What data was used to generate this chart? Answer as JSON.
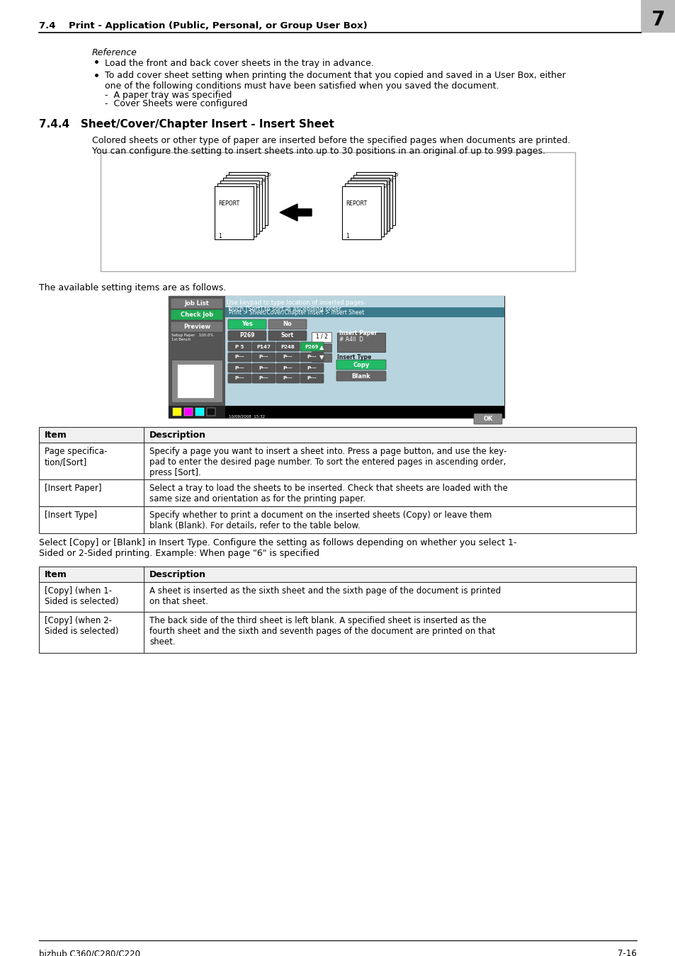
{
  "page_bg": "#ffffff",
  "header_text": "7.4    Print - Application (Public, Personal, or Group User Box)",
  "header_num": "7",
  "ref_label": "Reference",
  "bullet1": "Load the front and back cover sheets in the tray in advance.",
  "bullet2": "To add cover sheet setting when printing the document that you copied and saved in a User Box, either\none of the following conditions must have been satisfied when you saved the document.",
  "dash1": "A paper tray was specified",
  "dash2": "Cover Sheets were configured",
  "section_744_title": "7.4.4   Sheet/Cover/Chapter Insert - Insert Sheet",
  "section_744_body1": "Colored sheets or other type of paper are inserted before the specified pages when documents are printed.\nYou can configure the setting to insert sheets into up to 30 positions in an original of up to 999 pages.",
  "avail_text": "The available setting items are as follows.",
  "select_text": "Select [Copy] or [Blank] in Insert Type. Configure the setting as follows depending on whether you select 1-\nSided or 2-Sided printing. Example: When page \"6\" is specified",
  "table1_headers": [
    "Item",
    "Description"
  ],
  "table1_rows": [
    [
      "Page specifica-\ntion/[Sort]",
      "Specify a page you want to insert a sheet into. Press a page button, and use the key-\npad to enter the desired page number. To sort the entered pages in ascending order,\npress [Sort]."
    ],
    [
      "[Insert Paper]",
      "Select a tray to load the sheets to be inserted. Check that sheets are loaded with the\nsame size and orientation as for the printing paper."
    ],
    [
      "[Insert Type]",
      "Specify whether to print a document on the inserted sheets (Copy) or leave them\nblank (Blank). For details, refer to the table below."
    ]
  ],
  "table2_headers": [
    "Item",
    "Description"
  ],
  "table2_rows": [
    [
      "[Copy] (when 1-\nSided is selected)",
      "A sheet is inserted as the sixth sheet and the sixth page of the document is printed\non that sheet."
    ],
    [
      "[Copy] (when 2-\nSided is selected)",
      "The back side of the third sheet is left blank. A specified sheet is inserted as the\nfourth sheet and the sixth and seventh pages of the document are printed on that\nsheet."
    ]
  ],
  "footer_left": "bizhub C360/C280/C220",
  "footer_right": "7-16"
}
